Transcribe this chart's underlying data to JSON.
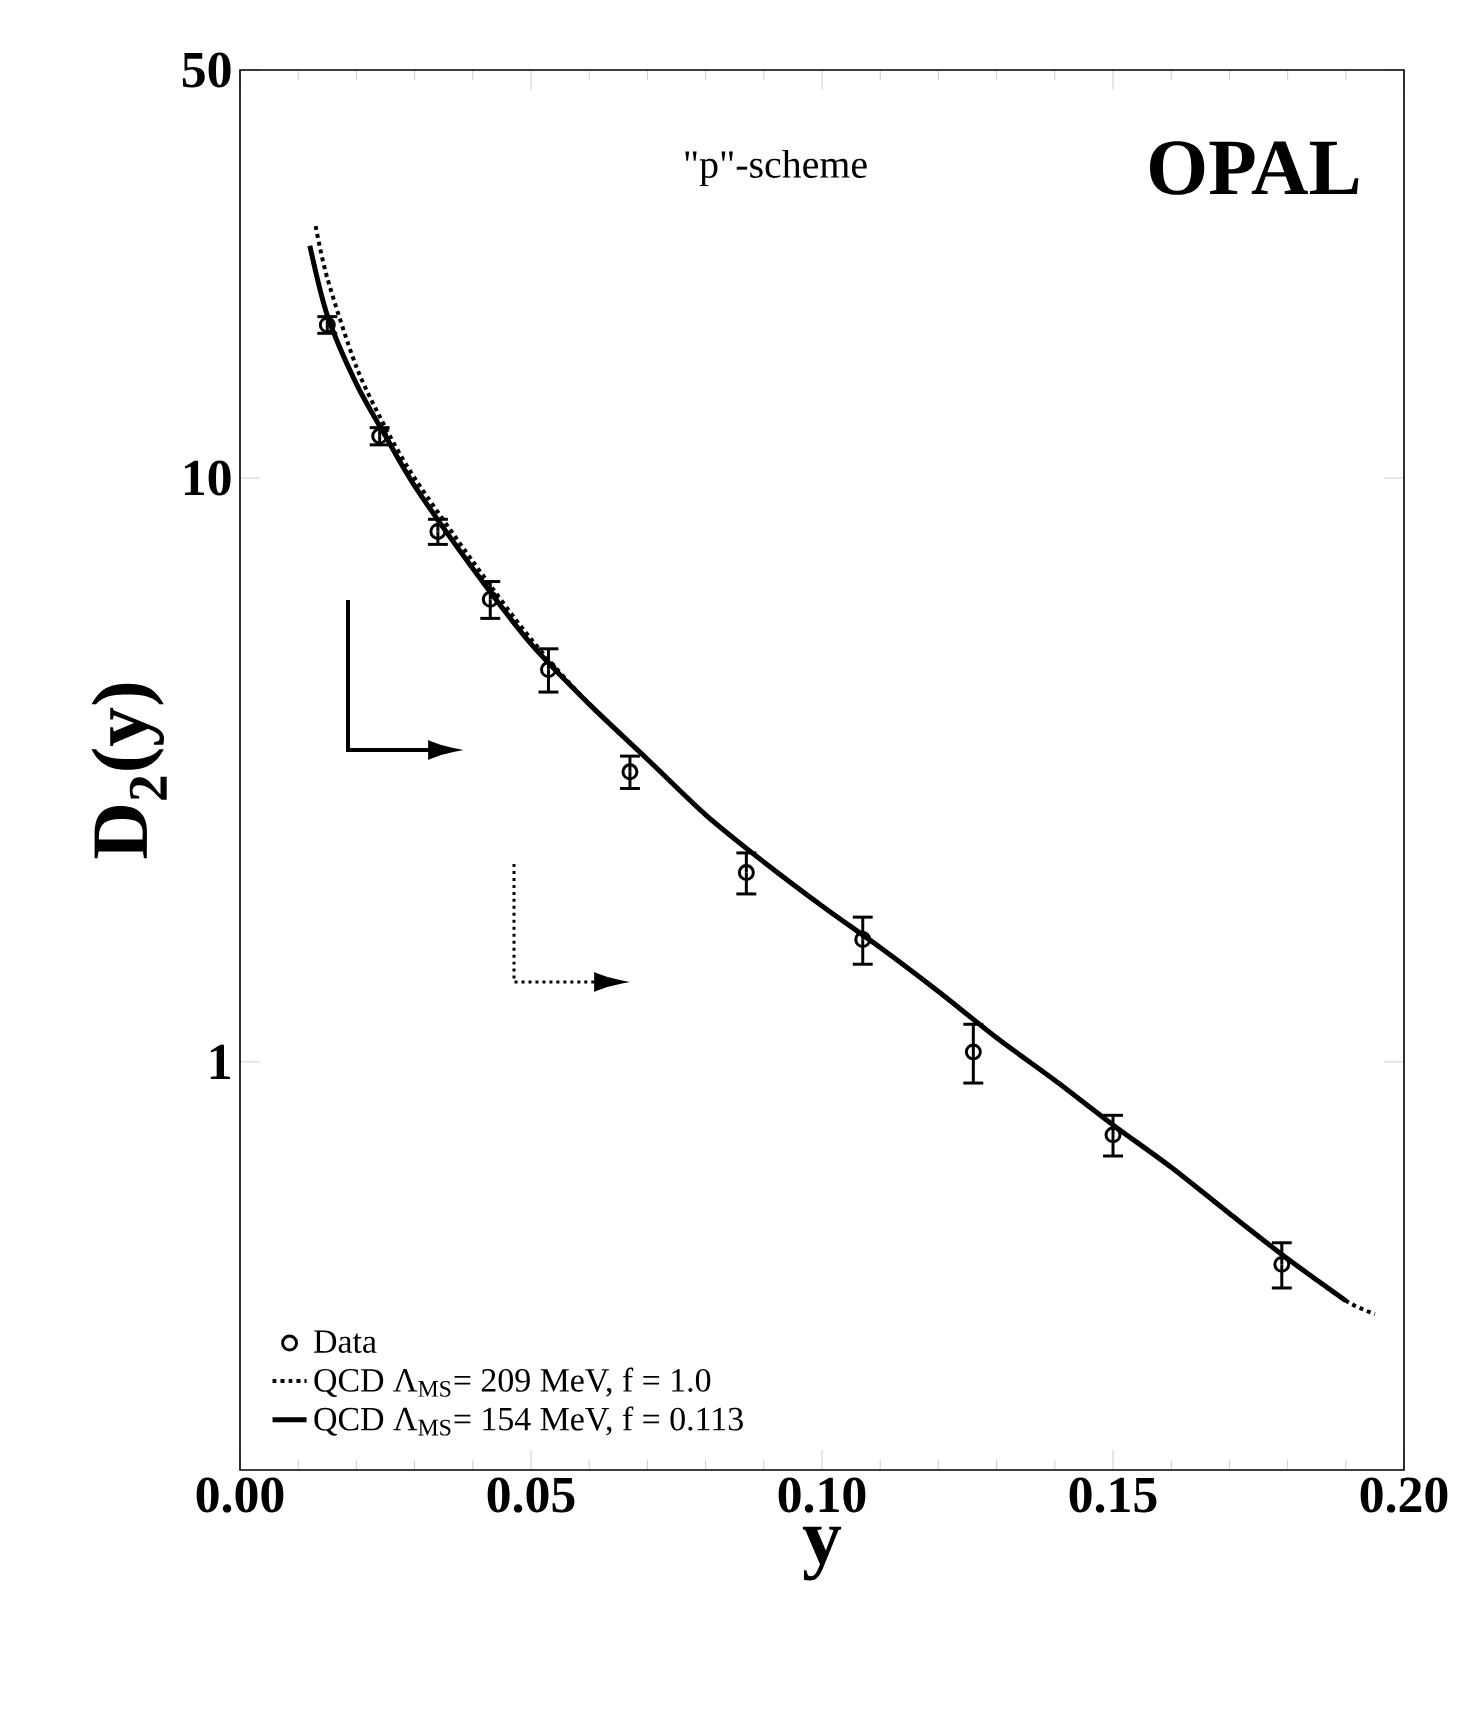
{
  "chart_data": {
    "type": "line",
    "xlabel": "y",
    "ylabel": "D$_{2}$(y)",
    "log": "y",
    "xlim": [
      0,
      0.2
    ],
    "xticks": [
      {
        "value": 0,
        "label": "0.00"
      },
      0.05,
      {
        "value": 0.1,
        "label": "0.10"
      },
      0.15,
      {
        "value": 0.2,
        "label": "0.20"
      }
    ],
    "ylim": [
      0.2,
      50
    ],
    "yticks": [
      1,
      10,
      50
    ],
    "legend": "bottom left",
    "grid": false,
    "annotations": [
      "\"p\"-scheme",
      "OPAL"
    ],
    "series": [
      {
        "name": "Data",
        "type": "scatter",
        "marker": "circle",
        "color": "#000000",
        "x": [
          0.015,
          0.024,
          0.034,
          0.043,
          0.053,
          0.067,
          0.087,
          0.107,
          0.126,
          0.15,
          0.179
        ],
        "values": [
          18.3,
          11.8,
          8.1,
          6.2,
          4.7,
          3.14,
          2.11,
          1.62,
          1.04,
          0.75,
          0.45
        ],
        "errors": [
          0.6,
          0.4,
          0.4,
          0.45,
          0.4,
          0.2,
          0.17,
          0.15,
          0.12,
          0.06,
          0.04
        ]
      },
      {
        "name": "QCD  Λ$_{MS}$= 209 MeV, f = 1.0",
        "type": "line",
        "line_style": "dotted",
        "marker": "none",
        "color": "#000000",
        "x": [
          0.013,
          0.015,
          0.02,
          0.025,
          0.03,
          0.04,
          0.05,
          0.06,
          0.07,
          0.08,
          0.09,
          0.1,
          0.11,
          0.12,
          0.13,
          0.14,
          0.15,
          0.16,
          0.17,
          0.18,
          0.19,
          0.195
        ],
        "values": [
          27,
          22,
          15.5,
          12.2,
          10,
          7.2,
          5.3,
          4.1,
          3.3,
          2.65,
          2.2,
          1.85,
          1.57,
          1.32,
          1.1,
          0.93,
          0.78,
          0.66,
          0.55,
          0.46,
          0.39,
          0.37
        ]
      },
      {
        "name": "QCD  Λ$_{MS}$= 154 MeV, f = 0.113",
        "type": "line",
        "line_style": "solid",
        "marker": "none",
        "color": "#000000",
        "x": [
          0.012,
          0.015,
          0.02,
          0.025,
          0.03,
          0.04,
          0.05,
          0.06,
          0.07,
          0.08,
          0.09,
          0.1,
          0.11,
          0.12,
          0.13,
          0.14,
          0.15,
          0.16,
          0.17,
          0.18,
          0.19
        ],
        "values": [
          25,
          19,
          14.5,
          11.8,
          9.7,
          7.0,
          5.2,
          4.1,
          3.3,
          2.65,
          2.2,
          1.85,
          1.57,
          1.32,
          1.1,
          0.93,
          0.78,
          0.66,
          0.55,
          0.46,
          0.39
        ]
      }
    ]
  }
}
